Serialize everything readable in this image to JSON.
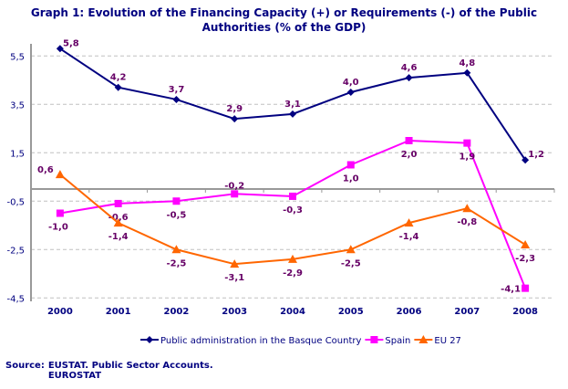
{
  "chart_data": {
    "type": "line",
    "title_lines": [
      "Graph 1: Evolution of the Financing Capacity (+) or Requirements (-) of the Public",
      "Authorities (% of the GDP)"
    ],
    "categories": [
      "2000",
      "2001",
      "2002",
      "2003",
      "2004",
      "2005",
      "2006",
      "2007",
      "2008"
    ],
    "yticks": [
      "5,5",
      "3,5",
      "1,5",
      "-0,5",
      "-2,5",
      "-4,5"
    ],
    "ytick_values": [
      5.5,
      3.5,
      1.5,
      -0.5,
      -2.5,
      -4.5
    ],
    "ylim": [
      -4.5,
      6.3
    ],
    "grid": true,
    "legend_position": "bottom",
    "series": [
      {
        "name": "Public administration in the Basque Country",
        "color": "#000080",
        "marker": "diamond",
        "values": [
          5.8,
          4.2,
          3.7,
          2.9,
          3.1,
          4.0,
          4.6,
          4.8,
          1.2
        ],
        "labels": [
          "5,8",
          "4,2",
          "3,7",
          "2,9",
          "3,1",
          "4,0",
          "4,6",
          "4,8",
          "1,2"
        ]
      },
      {
        "name": "Spain",
        "color": "#FF00FF",
        "marker": "square",
        "values": [
          -1.0,
          -0.6,
          -0.5,
          -0.2,
          -0.3,
          1.0,
          2.0,
          1.9,
          -4.1
        ],
        "labels": [
          "-1,0",
          "-0,6",
          "-0,5",
          "-0,2",
          "-0,3",
          "1,0",
          "2,0",
          "1,9",
          "-4,1"
        ]
      },
      {
        "name": "EU 27",
        "color": "#FF6600",
        "marker": "triangle",
        "values": [
          0.6,
          -1.4,
          -2.5,
          -3.1,
          -2.9,
          -2.5,
          -1.4,
          -0.8,
          -2.3
        ],
        "labels": [
          "0,6",
          "-1,4",
          "-2,5",
          "-3,1",
          "-2,9",
          "-2,5",
          "-1,4",
          "-0,8",
          "-2,3"
        ]
      }
    ]
  },
  "source": {
    "label": "Source:",
    "lines": [
      "EUSTAT. Public Sector Accounts.",
      "EUROSTAT"
    ]
  }
}
